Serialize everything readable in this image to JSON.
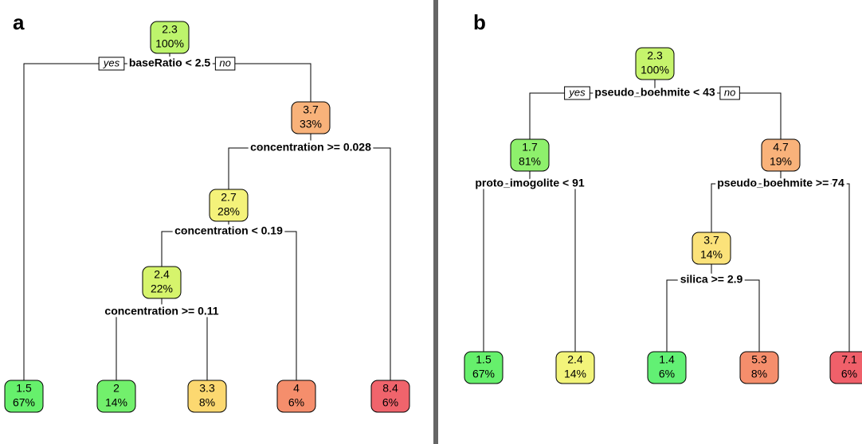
{
  "panels": [
    {
      "label": "a",
      "yes": "yes",
      "no": "no",
      "splits": [
        "baseRatio < 2.5",
        "concentration >= 0.028",
        "concentration < 0.19",
        "concentration >= 0.11"
      ],
      "nodes": [
        {
          "value": "2.3",
          "share": "100%"
        },
        {
          "value": "3.7",
          "share": "33%"
        },
        {
          "value": "2.7",
          "share": "28%"
        },
        {
          "value": "2.4",
          "share": "22%"
        },
        {
          "value": "1.5",
          "share": "67%"
        },
        {
          "value": "2",
          "share": "14%"
        },
        {
          "value": "3.3",
          "share": "8%"
        },
        {
          "value": "4",
          "share": "6%"
        },
        {
          "value": "8.4",
          "share": "6%"
        }
      ]
    },
    {
      "label": "b",
      "yes": "yes",
      "no": "no",
      "splits": [
        "pseudo_boehmite < 43",
        "proto_imogolite < 91",
        "pseudo_boehmite >= 74",
        "silica >= 2.9"
      ],
      "nodes": [
        {
          "value": "2.3",
          "share": "100%"
        },
        {
          "value": "1.7",
          "share": "81%"
        },
        {
          "value": "4.7",
          "share": "19%"
        },
        {
          "value": "3.7",
          "share": "14%"
        },
        {
          "value": "1.5",
          "share": "67%"
        },
        {
          "value": "2.4",
          "share": "14%"
        },
        {
          "value": "1.4",
          "share": "6%"
        },
        {
          "value": "5.3",
          "share": "8%"
        },
        {
          "value": "7.1",
          "share": "6%"
        }
      ]
    }
  ]
}
